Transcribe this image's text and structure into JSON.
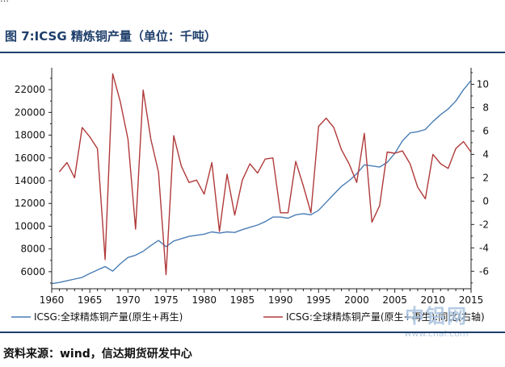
{
  "header_fragment": "…",
  "figure_title": "图 7:ICSG 精炼铜产量（单位：千吨）",
  "source_text": "资料来源：wind，信达期货研发中心",
  "watermark": {
    "logo": "中铝网",
    "url": "www.cnal.com"
  },
  "colors": {
    "left_series": "#4a7db5",
    "right_series": "#b03a3a",
    "title": "#1f3f6b"
  },
  "chart_data": {
    "type": "line",
    "title": "",
    "xlabel": "",
    "ylabel_left": "",
    "ylabel_right": "",
    "xlim": [
      1960,
      2015
    ],
    "ylim_left": [
      4500,
      23500
    ],
    "ylim_right": [
      -7.5,
      11
    ],
    "x_ticks": [
      1960,
      1965,
      1970,
      1975,
      1980,
      1985,
      1990,
      1995,
      2000,
      2005,
      2010,
      2015
    ],
    "y_left_ticks": [
      6000,
      8000,
      10000,
      12000,
      14000,
      16000,
      18000,
      20000,
      22000
    ],
    "y_right_ticks": [
      -6,
      -4,
      -2,
      0,
      2,
      4,
      6,
      8,
      10
    ],
    "grid": false,
    "legend_position": "bottom",
    "series": [
      {
        "name": "ICSG:全球精炼铜产量(原生+再生)",
        "axis": "left",
        "x": [
          1960,
          1961,
          1962,
          1963,
          1964,
          1965,
          1966,
          1967,
          1968,
          1969,
          1970,
          1971,
          1972,
          1973,
          1974,
          1975,
          1976,
          1977,
          1978,
          1979,
          1980,
          1981,
          1982,
          1983,
          1984,
          1985,
          1986,
          1987,
          1988,
          1989,
          1990,
          1991,
          1992,
          1993,
          1994,
          1995,
          1996,
          1997,
          1998,
          1999,
          2000,
          2001,
          2002,
          2003,
          2004,
          2005,
          2006,
          2007,
          2008,
          2009,
          2010,
          2011,
          2012,
          2013,
          2014,
          2015
        ],
        "values": [
          4950,
          5050,
          5200,
          5350,
          5500,
          5850,
          6150,
          6450,
          6050,
          6700,
          7250,
          7450,
          7800,
          8300,
          8750,
          8200,
          8700,
          8900,
          9100,
          9200,
          9300,
          9500,
          9400,
          9500,
          9450,
          9700,
          9900,
          10100,
          10400,
          10800,
          10800,
          10700,
          11000,
          11100,
          11000,
          11400,
          12100,
          12800,
          13500,
          14000,
          14600,
          15400,
          15300,
          15200,
          15600,
          16400,
          17500,
          18200,
          18300,
          18500,
          19200,
          19800,
          20300,
          21000,
          22000,
          22800
        ]
      },
      {
        "name": "ICSG:全球精炼铜产量(原生+再生):同比(右轴)",
        "axis": "right",
        "x": [
          1961,
          1962,
          1963,
          1964,
          1965,
          1966,
          1967,
          1968,
          1969,
          1970,
          1971,
          1972,
          1973,
          1974,
          1975,
          1976,
          1977,
          1978,
          1979,
          1980,
          1981,
          1982,
          1983,
          1984,
          1985,
          1986,
          1987,
          1988,
          1989,
          1990,
          1991,
          1992,
          1993,
          1994,
          1995,
          1996,
          1997,
          1998,
          1999,
          2000,
          2001,
          2002,
          2003,
          2004,
          2005,
          2006,
          2007,
          2008,
          2009,
          2010,
          2011,
          2012,
          2013,
          2014,
          2015
        ],
        "values": [
          2.5,
          3.3,
          2.0,
          6.3,
          5.5,
          4.5,
          -5.0,
          10.9,
          8.5,
          5.3,
          -2.4,
          9.5,
          5.3,
          2.5,
          -6.3,
          5.6,
          3.0,
          1.6,
          1.8,
          0.6,
          3.3,
          -2.6,
          2.3,
          -1.2,
          1.8,
          3.2,
          2.4,
          3.6,
          3.7,
          -1.0,
          -1.0,
          3.4,
          1.3,
          -1.0,
          6.4,
          7.1,
          6.3,
          4.4,
          3.2,
          1.6,
          5.8,
          -1.8,
          -0.4,
          4.2,
          4.1,
          4.3,
          3.2,
          1.2,
          0.2,
          4.0,
          3.2,
          2.8,
          4.5,
          5.1,
          4.2
        ]
      }
    ]
  }
}
